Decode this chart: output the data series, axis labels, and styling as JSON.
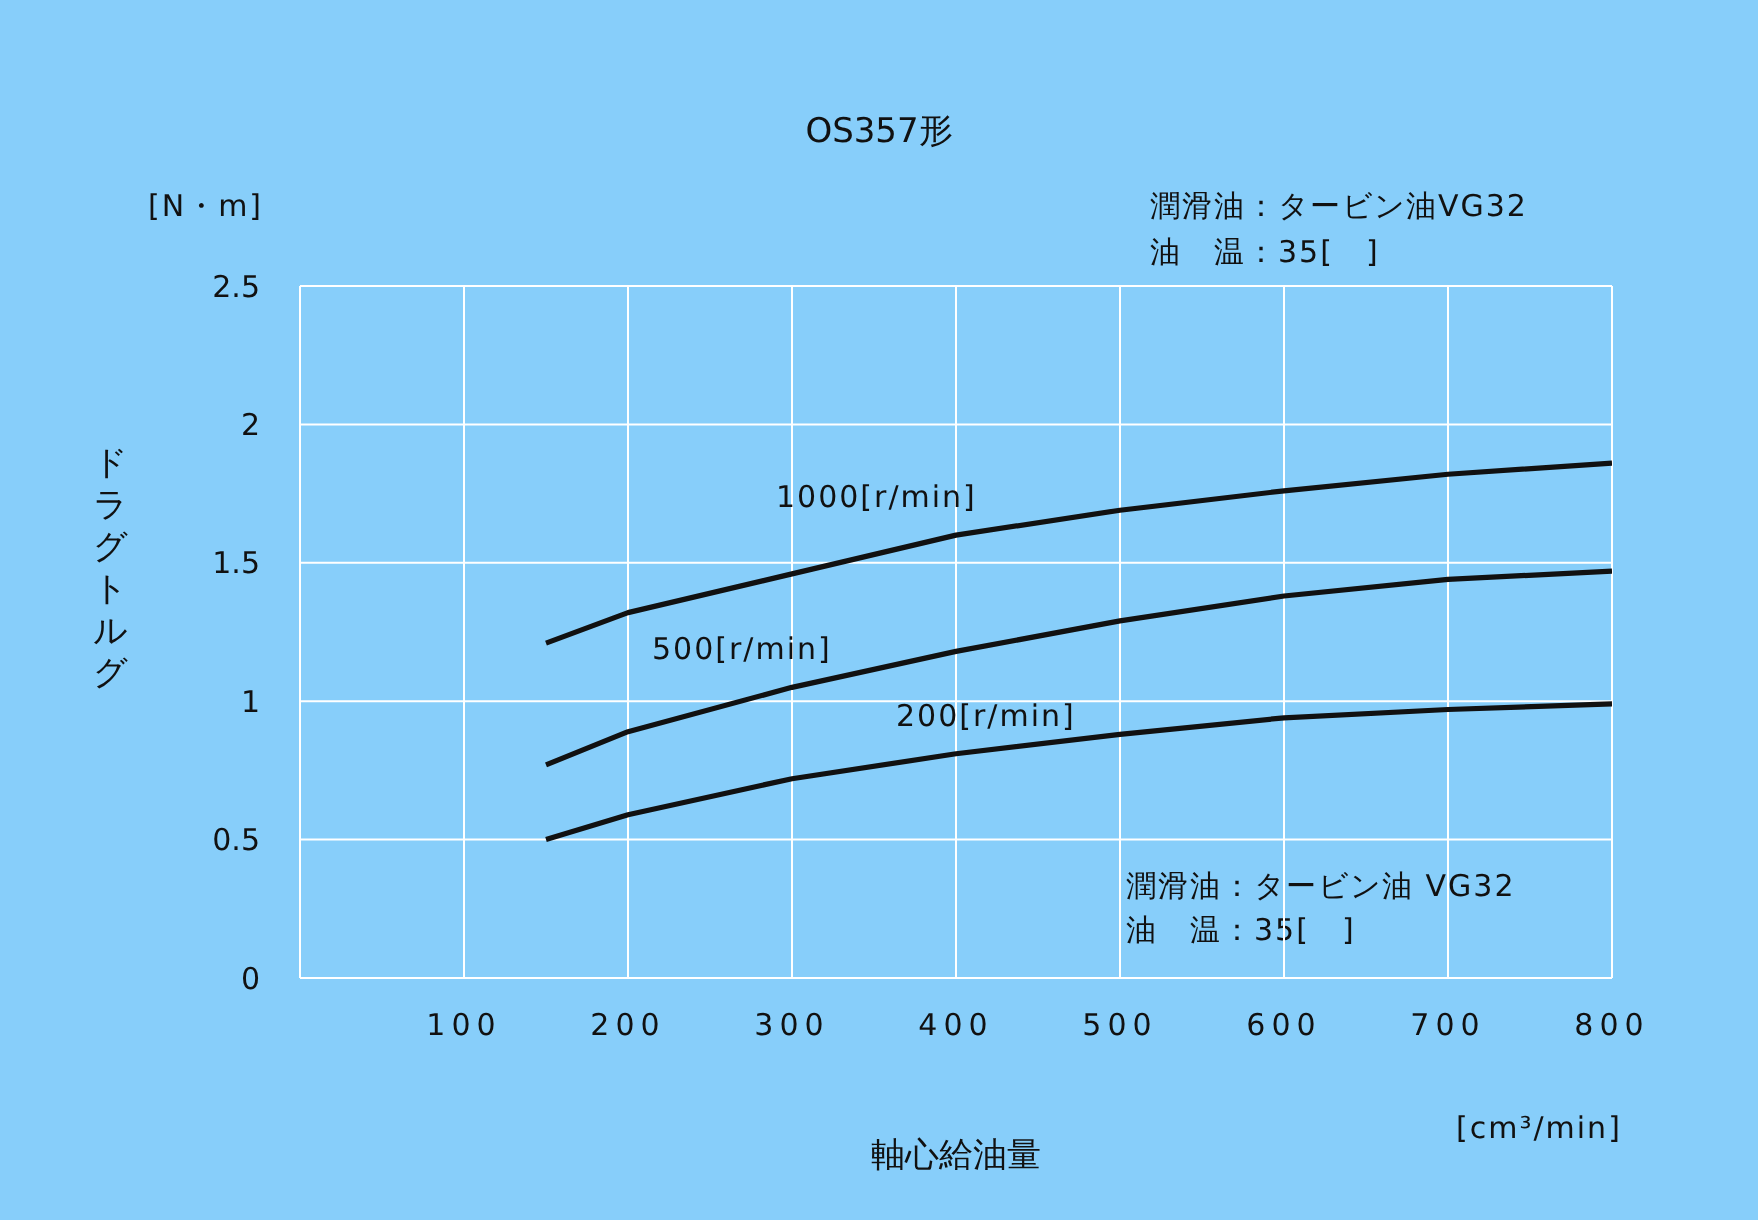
{
  "chart_data": {
    "type": "line",
    "title": "OS357形",
    "xlabel": "軸心給油量",
    "ylabel": "ドラグトルグ",
    "annotations": [
      "[N・m]",
      "[cm³/min]",
      "潤滑油：タービン油VG32",
      "油　温：35[　]",
      "潤滑油：タービン油 VG32",
      "油　温：35[　]"
    ],
    "x": [
      150,
      200,
      300,
      400,
      500,
      600,
      700,
      800
    ],
    "series": [
      {
        "name": "1000[r/min]",
        "color": "#111111",
        "values": [
          1.21,
          1.32,
          1.46,
          1.6,
          1.69,
          1.76,
          1.82,
          1.86
        ]
      },
      {
        "name": "500[r/min]",
        "color": "#111111",
        "values": [
          0.77,
          0.89,
          1.05,
          1.18,
          1.29,
          1.38,
          1.44,
          1.47
        ]
      },
      {
        "name": "200[r/min]",
        "color": "#111111",
        "values": [
          0.5,
          0.59,
          0.72,
          0.81,
          0.88,
          0.94,
          0.97,
          0.99
        ]
      }
    ],
    "xlim": [
      0,
      800
    ],
    "xticks": [
      100,
      200,
      300,
      400,
      500,
      600,
      700,
      800
    ],
    "ylim": [
      0,
      2.5
    ],
    "yticks": [
      0,
      0.5,
      1,
      1.5,
      2,
      2.5
    ],
    "grid": true,
    "legend": false,
    "marker": "none",
    "line_style": "solid"
  }
}
